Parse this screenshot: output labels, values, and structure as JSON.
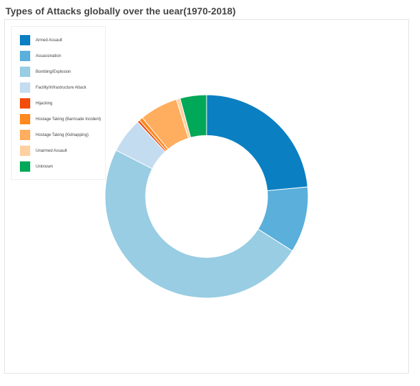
{
  "chart_data": {
    "type": "pie",
    "title": "Types of Attacks globally over the uear(1970-2018)",
    "legend_position": "top-left",
    "categories": [
      "Armed Assault",
      "Assassination",
      "Bombing/Explosion",
      "Facility/Infrastructure Attack",
      "Hijacking",
      "Hostage Taking (Barricade Incident)",
      "Hostage Taking (Kidnapping)",
      "Unarmed Assault",
      "Unknown"
    ],
    "values": [
      23.5,
      10.5,
      48.5,
      5.6,
      0.4,
      0.6,
      6.1,
      0.6,
      4.2
    ],
    "colors": [
      "#0a7fc2",
      "#5aafdb",
      "#98cde3",
      "#c4dcf0",
      "#f24b0c",
      "#ff8a1f",
      "#ffad5e",
      "#ffd1a0",
      "#00a857"
    ],
    "inner_radius_ratio": 0.6
  }
}
